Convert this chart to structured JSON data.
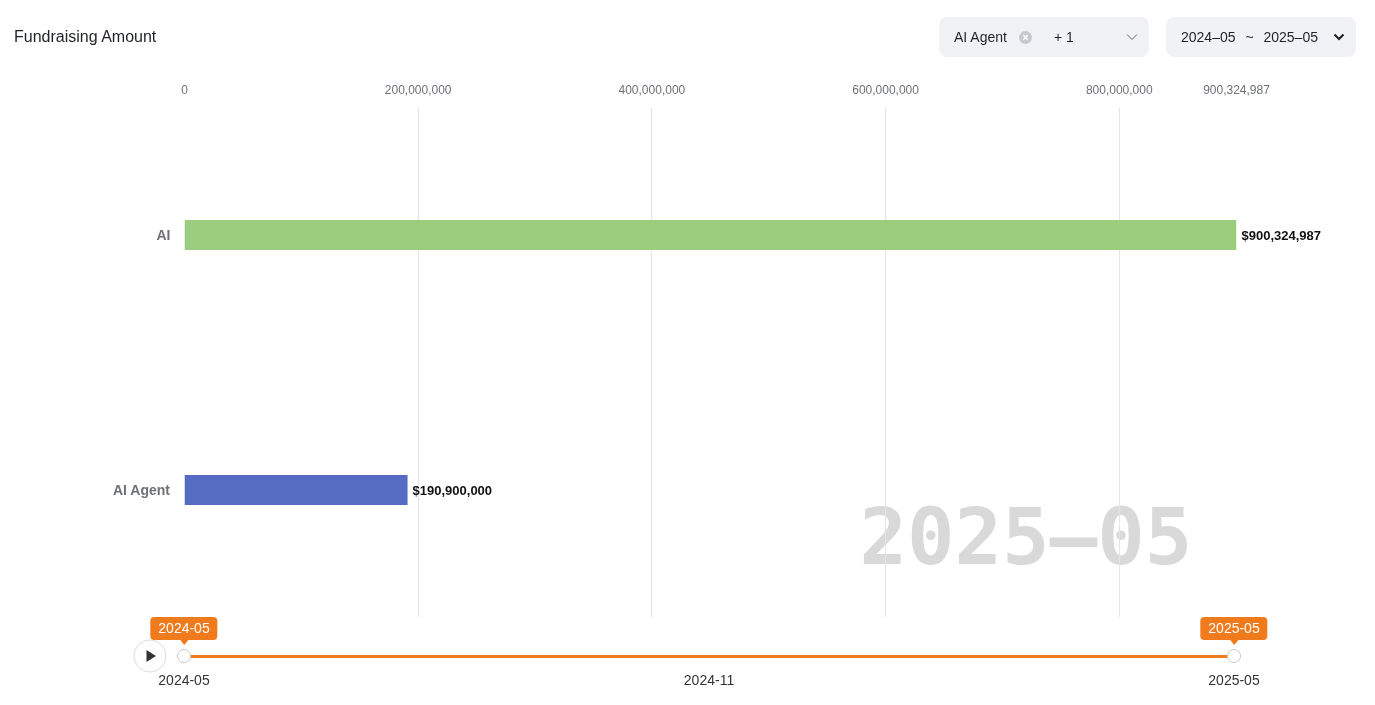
{
  "chart_data": {
    "type": "bar",
    "orientation": "horizontal",
    "title": "Fundraising Amount",
    "categories": [
      "AI",
      "AI Agent"
    ],
    "values": [
      900324987,
      190900000
    ],
    "colors": [
      "#9ccd7e",
      "#566cc2"
    ],
    "value_labels": [
      "$900,324,987",
      "$190,900,000"
    ],
    "xlim": [
      0,
      900324987
    ],
    "xticks": [
      0,
      {
        "value": 200000000,
        "label": "200,000,000"
      },
      {
        "value": 400000000,
        "label": "400,000,000"
      },
      {
        "value": 600000000,
        "label": "600,000,000"
      },
      {
        "value": 800000000,
        "label": "800,000,000"
      },
      {
        "value": 900324987,
        "label": "900,324,987"
      }
    ],
    "grid": "x",
    "annotations": [
      "AI Agent",
      "+ 1",
      "2024–05 ~ 2025–05",
      "2025–05",
      "2024-05",
      "2025-05",
      "2024-05",
      "2024-11",
      "2025-05"
    ]
  }
}
